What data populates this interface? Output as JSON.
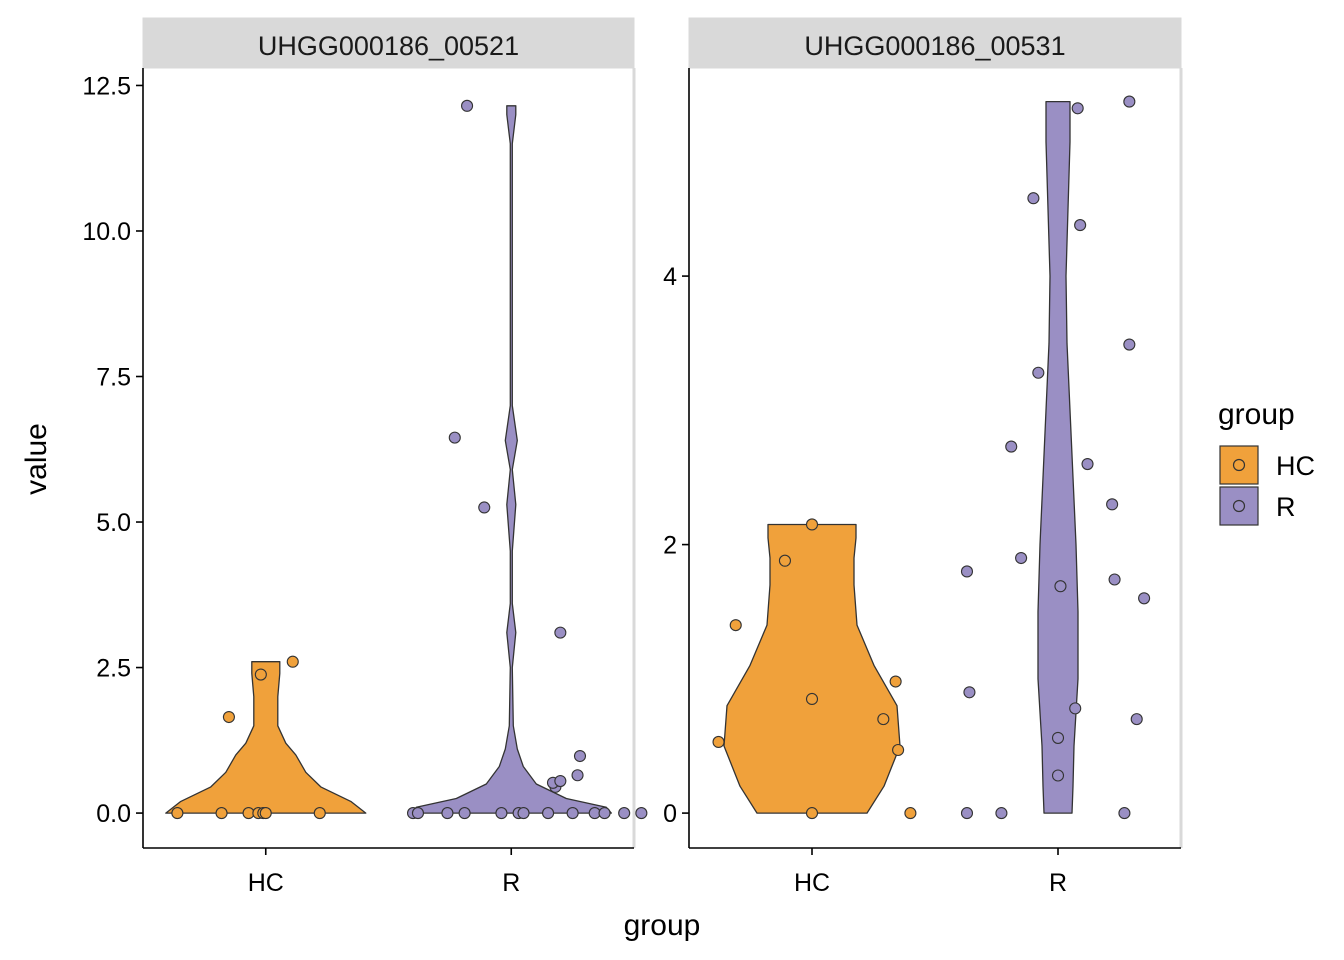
{
  "chart_data": {
    "type": "violin",
    "xlabel": "group",
    "ylabel": "value",
    "legend": {
      "title": "group",
      "position": "right",
      "items": [
        {
          "label": "HC",
          "color": "#F0A13B"
        },
        {
          "label": "R",
          "color": "#9A8FC4"
        }
      ]
    },
    "panels": [
      {
        "strip_label": "UHGG000186_00521",
        "categories": [
          "HC",
          "R"
        ],
        "ylim": [
          -0.6,
          12.8
        ],
        "yticks": [
          0,
          2.5,
          5,
          7.5,
          10,
          12.5
        ],
        "ytick_labels": [
          "0.0",
          "2.5",
          "5.0",
          "7.5",
          "10.0",
          "12.5"
        ],
        "series": [
          {
            "name": "HC",
            "violin_range": [
              0,
              2.6
            ],
            "density_profile": [
              [
                0,
                1.0
              ],
              [
                0.2,
                0.85
              ],
              [
                0.45,
                0.55
              ],
              [
                0.7,
                0.4
              ],
              [
                1.0,
                0.3
              ],
              [
                1.2,
                0.2
              ],
              [
                1.5,
                0.12
              ],
              [
                2.0,
                0.12
              ],
              [
                2.4,
                0.14
              ],
              [
                2.6,
                0.14
              ]
            ],
            "points": [
              {
                "offset": -0.36,
                "value": 0
              },
              {
                "offset": -0.18,
                "value": 0
              },
              {
                "offset": -0.07,
                "value": 0
              },
              {
                "offset": -0.03,
                "value": 0
              },
              {
                "offset": -0.01,
                "value": 0
              },
              {
                "offset": 0.0,
                "value": 0
              },
              {
                "offset": 0.22,
                "value": 0
              },
              {
                "offset": -0.15,
                "value": 1.65
              },
              {
                "offset": -0.02,
                "value": 2.38
              },
              {
                "offset": 0.11,
                "value": 2.6
              }
            ]
          },
          {
            "name": "R",
            "violin_range": [
              0,
              12.15
            ],
            "density_profile": [
              [
                0,
                1.0
              ],
              [
                0.1,
                0.95
              ],
              [
                0.25,
                0.55
              ],
              [
                0.5,
                0.25
              ],
              [
                0.8,
                0.12
              ],
              [
                1.1,
                0.06
              ],
              [
                1.5,
                0.02
              ],
              [
                2.5,
                0.01
              ],
              [
                3.1,
                0.045
              ],
              [
                3.6,
                0.01
              ],
              [
                4.5,
                0.01
              ],
              [
                5.3,
                0.045
              ],
              [
                5.9,
                0.01
              ],
              [
                6.4,
                0.06
              ],
              [
                7.0,
                0.01
              ],
              [
                11.5,
                0.01
              ],
              [
                12.0,
                0.045
              ],
              [
                12.15,
                0.045
              ]
            ],
            "points": [
              {
                "offset": -0.4,
                "value": 0
              },
              {
                "offset": -0.38,
                "value": 0
              },
              {
                "offset": -0.26,
                "value": 0
              },
              {
                "offset": -0.19,
                "value": 0
              },
              {
                "offset": -0.04,
                "value": 0
              },
              {
                "offset": 0.03,
                "value": 0
              },
              {
                "offset": 0.05,
                "value": 0
              },
              {
                "offset": 0.15,
                "value": 0
              },
              {
                "offset": 0.25,
                "value": 0
              },
              {
                "offset": 0.34,
                "value": 0
              },
              {
                "offset": 0.38,
                "value": 0
              },
              {
                "offset": 0.46,
                "value": 0
              },
              {
                "offset": 0.53,
                "value": 0
              },
              {
                "offset": 0.18,
                "value": 0.45
              },
              {
                "offset": 0.17,
                "value": 0.52
              },
              {
                "offset": 0.2,
                "value": 0.55
              },
              {
                "offset": 0.27,
                "value": 0.65
              },
              {
                "offset": 0.28,
                "value": 0.98
              },
              {
                "offset": 0.2,
                "value": 3.1
              },
              {
                "offset": -0.11,
                "value": 5.25
              },
              {
                "offset": -0.23,
                "value": 6.45
              },
              {
                "offset": -0.18,
                "value": 12.15
              }
            ]
          }
        ]
      },
      {
        "strip_label": "UHGG000186_00531",
        "categories": [
          "HC",
          "R"
        ],
        "ylim": [
          -0.26,
          5.55
        ],
        "yticks": [
          0,
          2,
          4
        ],
        "ytick_labels": [
          "0",
          "2",
          "4"
        ],
        "series": [
          {
            "name": "HC",
            "violin_range": [
              0,
              2.15
            ],
            "density_profile": [
              [
                0,
                0.55
              ],
              [
                0.2,
                0.72
              ],
              [
                0.5,
                0.88
              ],
              [
                0.8,
                0.85
              ],
              [
                1.1,
                0.62
              ],
              [
                1.4,
                0.45
              ],
              [
                1.7,
                0.42
              ],
              [
                1.9,
                0.42
              ],
              [
                2.05,
                0.44
              ],
              [
                2.15,
                0.44
              ]
            ],
            "points": [
              {
                "offset": -0.0,
                "value": 0
              },
              {
                "offset": 0.4,
                "value": 0
              },
              {
                "offset": 0.35,
                "value": 0.47
              },
              {
                "offset": -0.38,
                "value": 0.53
              },
              {
                "offset": 0.29,
                "value": 0.7
              },
              {
                "offset": 0.0,
                "value": 0.85
              },
              {
                "offset": 0.34,
                "value": 0.98
              },
              {
                "offset": -0.31,
                "value": 1.4
              },
              {
                "offset": -0.11,
                "value": 1.88
              },
              {
                "offset": -0.0,
                "value": 2.15
              }
            ]
          },
          {
            "name": "R",
            "violin_range": [
              0,
              5.3
            ],
            "density_profile": [
              [
                0,
                0.14
              ],
              [
                0.2,
                0.15
              ],
              [
                0.5,
                0.16
              ],
              [
                1.0,
                0.2
              ],
              [
                1.5,
                0.2
              ],
              [
                2.0,
                0.18
              ],
              [
                2.5,
                0.15
              ],
              [
                3.0,
                0.12
              ],
              [
                3.5,
                0.09
              ],
              [
                4.0,
                0.08
              ],
              [
                4.5,
                0.1
              ],
              [
                5.0,
                0.12
              ],
              [
                5.3,
                0.12
              ]
            ],
            "points": [
              {
                "offset": -0.37,
                "value": 0
              },
              {
                "offset": -0.23,
                "value": 0
              },
              {
                "offset": 0.27,
                "value": 0
              },
              {
                "offset": 0.0,
                "value": 0.28
              },
              {
                "offset": 0.0,
                "value": 0.56
              },
              {
                "offset": 0.07,
                "value": 0.78
              },
              {
                "offset": 0.32,
                "value": 0.7
              },
              {
                "offset": -0.36,
                "value": 0.9
              },
              {
                "offset": 0.35,
                "value": 1.6
              },
              {
                "offset": 0.23,
                "value": 1.74
              },
              {
                "offset": 0.01,
                "value": 1.69
              },
              {
                "offset": -0.37,
                "value": 1.8
              },
              {
                "offset": -0.15,
                "value": 1.9
              },
              {
                "offset": 0.22,
                "value": 2.3
              },
              {
                "offset": 0.12,
                "value": 2.6
              },
              {
                "offset": -0.19,
                "value": 2.73
              },
              {
                "offset": -0.08,
                "value": 3.28
              },
              {
                "offset": 0.29,
                "value": 3.49
              },
              {
                "offset": 0.09,
                "value": 4.38
              },
              {
                "offset": -0.1,
                "value": 4.58
              },
              {
                "offset": 0.08,
                "value": 5.25
              },
              {
                "offset": 0.29,
                "value": 5.3
              }
            ]
          }
        ]
      }
    ]
  }
}
